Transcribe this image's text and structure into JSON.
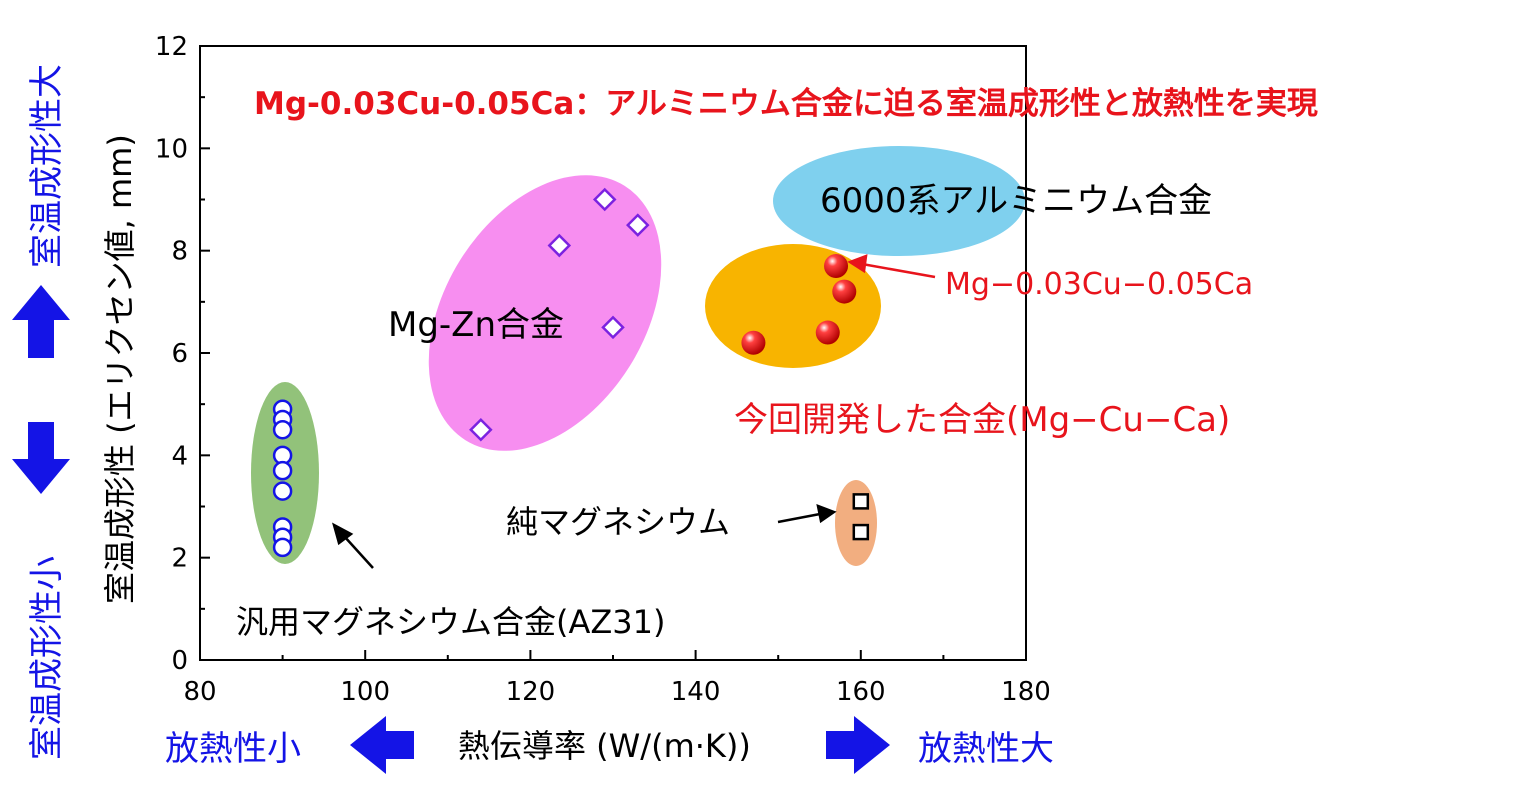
{
  "colors": {
    "red_text": "#e8141c",
    "blue_text": "#1414e6",
    "mgzn_region": "#f78ef0",
    "al6000_region": "#7fd0ee",
    "new_alloy_region": "#f8b400",
    "az31_region": "#92c27a",
    "pure_mg_region": "#f2ae80"
  },
  "chart_data": {
    "type": "scatter",
    "title": "Mg-0.03Cu-0.05Ca：アルミニウム合金に迫る室温成形性と放熱性を実現",
    "xlabel": "熱伝導率 (W/(m·K))",
    "ylabel": "室温成形性 (エリクセン値, mm)",
    "xlim": [
      80,
      180
    ],
    "ylim": [
      0,
      12
    ],
    "x_ticks": [
      "80",
      "100",
      "120",
      "140",
      "160",
      "180"
    ],
    "y_ticks": [
      "0",
      "2",
      "4",
      "6",
      "8",
      "10",
      "12"
    ],
    "grid": false,
    "series": [
      {
        "name": "Mg-Zn合金",
        "marker": "open-diamond",
        "color": "#7b22e0",
        "points": [
          [
            114,
            4.5
          ],
          [
            123.5,
            8.1
          ],
          [
            129,
            9.0
          ],
          [
            133,
            8.5
          ],
          [
            130,
            6.5
          ]
        ]
      },
      {
        "name": "汎用マグネシウム合金(AZ31)",
        "marker": "open-circle",
        "color": "#1414e6",
        "points": [
          [
            90,
            4.9
          ],
          [
            90,
            4.7
          ],
          [
            90,
            4.5
          ],
          [
            90,
            4.0
          ],
          [
            90,
            3.7
          ],
          [
            90,
            3.3
          ],
          [
            90,
            2.6
          ],
          [
            90,
            2.4
          ],
          [
            90,
            2.2
          ]
        ]
      },
      {
        "name": "今回開発した合金(Mg−Cu−Ca)",
        "marker": "red-ball",
        "color": "#e8141c",
        "points": [
          [
            147,
            6.2
          ],
          [
            156,
            6.4
          ],
          [
            157,
            7.7
          ],
          [
            158,
            7.2
          ]
        ]
      },
      {
        "name": "純マグネシウム",
        "marker": "open-square",
        "color": "#000000",
        "points": [
          [
            160,
            3.1
          ],
          [
            160,
            2.5
          ]
        ]
      }
    ],
    "regions": [
      {
        "name": "6000系アルミニウム合金",
        "color": "#7fd0ee"
      }
    ],
    "annotations": [
      {
        "text": "Mg−0.03Cu−0.05Ca",
        "color": "red",
        "arrow": true
      },
      {
        "text": "今回開発した合金(Mg−Cu−Ca)",
        "color": "red"
      },
      {
        "text": "純マグネシウム",
        "color": "black",
        "arrow": true
      },
      {
        "text": "汎用マグネシウム合金(AZ31)",
        "color": "black",
        "arrow": true
      },
      {
        "text": "6000系アルミニウム合金",
        "color": "black"
      },
      {
        "text": "Mg-Zn合金",
        "color": "black"
      }
    ]
  },
  "side_labels": {
    "y_high": "室温成形性大",
    "y_low": "室温成形性小",
    "x_low": "放熱性小",
    "x_high": "放熱性大"
  }
}
